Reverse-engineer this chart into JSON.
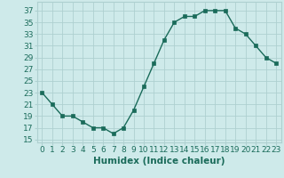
{
  "x": [
    0,
    1,
    2,
    3,
    4,
    5,
    6,
    7,
    8,
    9,
    10,
    11,
    12,
    13,
    14,
    15,
    16,
    17,
    18,
    19,
    20,
    21,
    22,
    23
  ],
  "y": [
    23,
    21,
    19,
    19,
    18,
    17,
    17,
    16,
    17,
    20,
    24,
    28,
    32,
    35,
    36,
    36,
    37,
    37,
    37,
    34,
    33,
    31,
    29,
    28
  ],
  "line_color": "#1a6b5a",
  "marker": "s",
  "marker_size": 2.5,
  "bg_color": "#ceeaea",
  "grid_color": "#aed0d0",
  "xlabel": "Humidex (Indice chaleur)",
  "xlabel_fontsize": 7.5,
  "yticks": [
    15,
    17,
    19,
    21,
    23,
    25,
    27,
    29,
    31,
    33,
    35,
    37
  ],
  "xticks": [
    0,
    1,
    2,
    3,
    4,
    5,
    6,
    7,
    8,
    9,
    10,
    11,
    12,
    13,
    14,
    15,
    16,
    17,
    18,
    19,
    20,
    21,
    22,
    23
  ],
  "xlim": [
    -0.5,
    23.5
  ],
  "ylim": [
    14.5,
    38.5
  ],
  "tick_fontsize": 6.5
}
